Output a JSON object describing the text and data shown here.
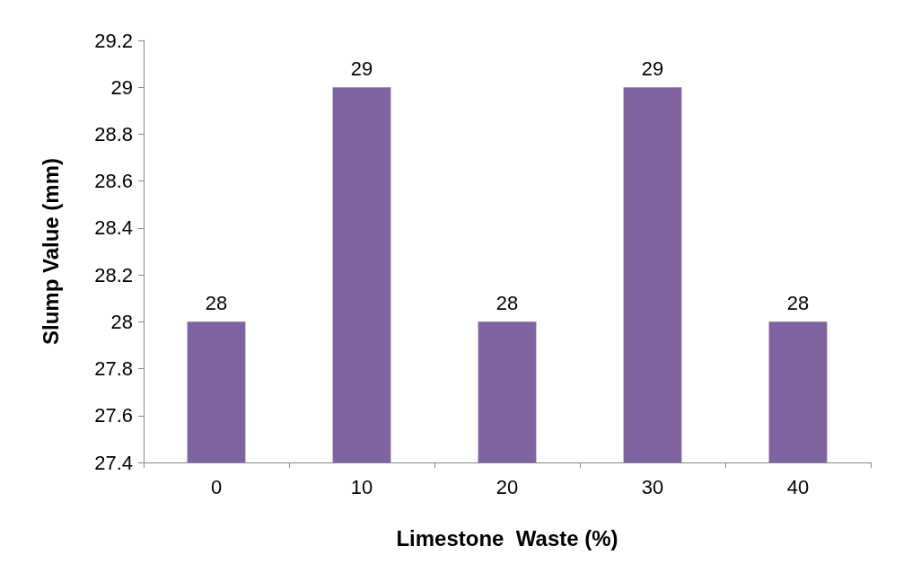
{
  "chart_data": {
    "type": "bar",
    "xlabel": "Limestone  Waste (%)",
    "ylabel": "Slump Value (mm)",
    "categories": [
      "0",
      "10",
      "20",
      "30",
      "40"
    ],
    "values": [
      28,
      29,
      28,
      29,
      28
    ],
    "color": "#8064a2",
    "ylim": [
      27.4,
      29.2
    ],
    "yticks": [
      27.4,
      27.6,
      27.8,
      28,
      28.2,
      28.4,
      28.6,
      28.8,
      29,
      29.2
    ],
    "grid": false,
    "data_labels": true
  }
}
